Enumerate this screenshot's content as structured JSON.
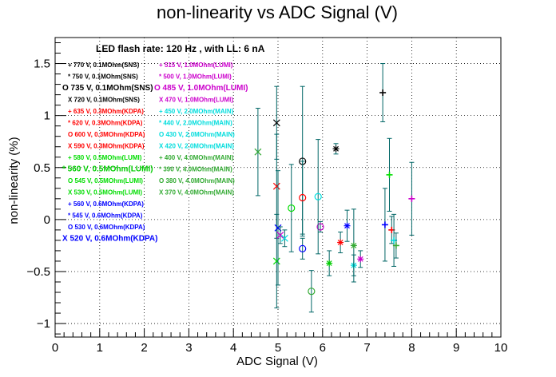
{
  "chart_data": {
    "type": "scatter",
    "title": "non-linearity vs ADC Signal (V)",
    "xlabel": "ADC Signal (V)",
    "ylabel": "non-linearity (%)",
    "xlim": [
      0,
      10
    ],
    "ylim": [
      -1.13,
      1.75
    ],
    "xticks": [
      "0",
      "1",
      "2",
      "3",
      "4",
      "5",
      "6",
      "7",
      "8",
      "9",
      "10"
    ],
    "yticks": [
      {
        "value": -1,
        "label": "−1"
      },
      {
        "value": -0.5,
        "label": "−0.5"
      },
      {
        "value": 0,
        "label": "0"
      },
      {
        "value": 0.5,
        "label": "0.5"
      },
      {
        "value": 1,
        "label": "1"
      },
      {
        "value": 1.5,
        "label": "1.5"
      }
    ],
    "grid": true,
    "annotation": "LED flash rate: 120 Hz , with LL: 6 nA",
    "colors": {
      "black": "#000000",
      "magenta": "#cc00cc",
      "red": "#ff0000",
      "cyan": "#00dddd",
      "green": "#00cc00",
      "olive": "#33aa33",
      "blue": "#0000ff",
      "errbar": "#006666"
    },
    "legend_left": [
      {
        "label": "+ 770 V, 0.1MOhm(SNS)",
        "color": "#000000",
        "size": "small"
      },
      {
        "label": "* 750 V, 0.1MOhm(SNS)",
        "color": "#000000",
        "size": "small"
      },
      {
        "label": "O 735 V, 0.1MOhm(SNS)",
        "color": "#000000",
        "size": "big"
      },
      {
        "label": "X 720 V, 0.1MOhm(SNS)",
        "color": "#000000",
        "size": "small"
      },
      {
        "label": "+ 635 V, 0.3MOhm(KDPA)",
        "color": "#ff0000",
        "size": "small"
      },
      {
        "label": "* 620 V, 0.3MOhm(KDPA)",
        "color": "#ff0000",
        "size": "small"
      },
      {
        "label": "O 600 V, 0.3MOhm(KDPA)",
        "color": "#ff0000",
        "size": "small"
      },
      {
        "label": "X 590 V, 0.3MOhm(KDPA)",
        "color": "#ff0000",
        "size": "small"
      },
      {
        "label": "+ 580 V, 0.5MOhm(LUMI)",
        "color": "#00dd00",
        "size": "small"
      },
      {
        "label": "* 560 V, 0.5MOhm(LUMI)",
        "color": "#00cc00",
        "size": "big"
      },
      {
        "label": "O 545 V, 0.5MOhm(LUMI)",
        "color": "#00dd00",
        "size": "small"
      },
      {
        "label": "X 530 V, 0.5MOhm(LUMI)",
        "color": "#00dd00",
        "size": "small"
      },
      {
        "label": "+ 560 V, 0.6MOhm(KDPA)",
        "color": "#0000ff",
        "size": "small"
      },
      {
        "label": "* 545 V, 0.6MOhm(KDPA)",
        "color": "#0000ff",
        "size": "small"
      },
      {
        "label": "O 530 V, 0.6MOhm(KDPA)",
        "color": "#0000ff",
        "size": "small"
      },
      {
        "label": "X 520 V, 0.6MOhm(KDPA)",
        "color": "#0000ff",
        "size": "big"
      }
    ],
    "legend_right": [
      {
        "label": "+ 515 V, 1.0MOhm(LUMI)",
        "color": "#cc00cc",
        "size": "small"
      },
      {
        "label": "* 500 V, 1.0MOhm(LUMI)",
        "color": "#cc00cc",
        "size": "small"
      },
      {
        "label": "O 485 V, 1.0MOhm(LUMI)",
        "color": "#cc00cc",
        "size": "big"
      },
      {
        "label": "X 470 V, 1.0MOhm(LUMI)",
        "color": "#cc00cc",
        "size": "small"
      },
      {
        "label": "+ 450 V, 2.0MOhm(MAIN)",
        "color": "#00dddd",
        "size": "small"
      },
      {
        "label": "* 440 V, 2.0MOhm(MAIN)",
        "color": "#00dddd",
        "size": "small"
      },
      {
        "label": "O 430 V, 2.0MOhm(MAIN)",
        "color": "#00dddd",
        "size": "small"
      },
      {
        "label": "X 420 V, 2.0MOhm(MAIN)",
        "color": "#00dddd",
        "size": "small"
      },
      {
        "label": "+ 400 V, 4.0MOhm(MAIN)",
        "color": "#33aa33",
        "size": "small"
      },
      {
        "label": "* 390 V, 4.0MOhm(MAIN)",
        "color": "#33aa33",
        "size": "small"
      },
      {
        "label": "O 380 V, 4.0MOhm(MAIN)",
        "color": "#33aa33",
        "size": "small"
      },
      {
        "label": "X 370 V, 4.0MOhm(MAIN)",
        "color": "#33aa33",
        "size": "small"
      }
    ],
    "points": [
      {
        "x": 7.35,
        "y": 1.22,
        "err": 0.28,
        "marker": "plus",
        "color": "#000000"
      },
      {
        "x": 6.3,
        "y": 0.68,
        "err": 0.05,
        "marker": "star",
        "color": "#000000"
      },
      {
        "x": 5.55,
        "y": 0.56,
        "err": 0.72,
        "marker": "circle",
        "color": "#000000"
      },
      {
        "x": 4.97,
        "y": 0.93,
        "err": 0.35,
        "marker": "x",
        "color": "#000000"
      },
      {
        "x": 7.55,
        "y": -0.1,
        "err": 0.13,
        "marker": "plus",
        "color": "#ff0000"
      },
      {
        "x": 6.4,
        "y": -0.22,
        "err": 0.1,
        "marker": "star",
        "color": "#ff0000"
      },
      {
        "x": 5.55,
        "y": 0.21,
        "err": 0.35,
        "marker": "circle",
        "color": "#ff0000"
      },
      {
        "x": 4.97,
        "y": 0.32,
        "err": 0.5,
        "marker": "x",
        "color": "#ff0000"
      },
      {
        "x": 7.5,
        "y": 0.43,
        "err": 0.35,
        "marker": "plus",
        "color": "#00dd00"
      },
      {
        "x": 6.15,
        "y": -0.42,
        "err": 0.12,
        "marker": "star",
        "color": "#00cc00"
      },
      {
        "x": 5.3,
        "y": 0.11,
        "err": 0.42,
        "marker": "circle",
        "color": "#00dd00"
      },
      {
        "x": 4.97,
        "y": -0.4,
        "err": 0.45,
        "marker": "x",
        "color": "#00dd00"
      },
      {
        "x": 7.4,
        "y": -0.05,
        "err": 0.35,
        "marker": "plus",
        "color": "#0000ff"
      },
      {
        "x": 6.55,
        "y": -0.06,
        "err": 0.15,
        "marker": "star",
        "color": "#0000ff"
      },
      {
        "x": 5.55,
        "y": -0.28,
        "err": 0.1,
        "marker": "circle",
        "color": "#0000ff"
      },
      {
        "x": 5.0,
        "y": -0.08,
        "err": 0.55,
        "marker": "x",
        "color": "#0000ff"
      },
      {
        "x": 8.0,
        "y": 0.2,
        "err": 0.35,
        "marker": "plus",
        "color": "#cc00cc"
      },
      {
        "x": 6.85,
        "y": -0.38,
        "err": 0.08,
        "marker": "star",
        "color": "#cc00cc"
      },
      {
        "x": 5.95,
        "y": -0.07,
        "err": 0.05,
        "marker": "circle",
        "color": "#cc00cc"
      },
      {
        "x": 5.05,
        "y": -0.15,
        "err": 0.08,
        "marker": "x",
        "color": "#cc00cc"
      },
      {
        "x": 7.6,
        "y": -0.2,
        "err": 0.25,
        "marker": "plus",
        "color": "#00dddd"
      },
      {
        "x": 6.7,
        "y": -0.44,
        "err": 0.1,
        "marker": "star",
        "color": "#00dddd"
      },
      {
        "x": 5.9,
        "y": 0.22,
        "err": 0.55,
        "marker": "circle",
        "color": "#00dddd"
      },
      {
        "x": 5.15,
        "y": -0.18,
        "err": 0.08,
        "marker": "x",
        "color": "#00dddd"
      },
      {
        "x": 7.65,
        "y": -0.25,
        "err": 0.12,
        "marker": "plus",
        "color": "#33aa33"
      },
      {
        "x": 6.7,
        "y": -0.25,
        "err": 0.35,
        "marker": "star",
        "color": "#33aa33"
      },
      {
        "x": 5.75,
        "y": -0.69,
        "err": 0.2,
        "marker": "circle",
        "color": "#33aa33"
      },
      {
        "x": 4.55,
        "y": 0.65,
        "err": 0.42,
        "marker": "x",
        "color": "#33aa33"
      }
    ]
  }
}
